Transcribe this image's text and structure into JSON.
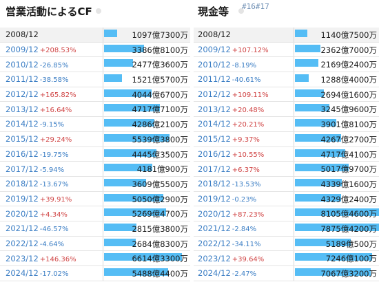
{
  "cf": {
    "title": "営業活動によるCF",
    "rows": [
      {
        "year": "2008/12",
        "change": "",
        "dir": "",
        "value": "1097億7300万",
        "ratio": 0.15
      },
      {
        "year": "2009/12",
        "change": "+208.53%",
        "dir": "up",
        "value": "3386億8100万",
        "ratio": 0.45
      },
      {
        "year": "2010/12",
        "change": "-26.85%",
        "dir": "down",
        "value": "2477億3600万",
        "ratio": 0.33
      },
      {
        "year": "2011/12",
        "change": "-38.58%",
        "dir": "down",
        "value": "1521億5700万",
        "ratio": 0.2
      },
      {
        "year": "2012/12",
        "change": "+165.82%",
        "dir": "up",
        "value": "4044億6700万",
        "ratio": 0.54
      },
      {
        "year": "2013/12",
        "change": "+16.64%",
        "dir": "up",
        "value": "4717億7100万",
        "ratio": 0.63
      },
      {
        "year": "2014/12",
        "change": "-9.15%",
        "dir": "down",
        "value": "4286億2100万",
        "ratio": 0.57
      },
      {
        "year": "2015/12",
        "change": "+29.24%",
        "dir": "up",
        "value": "5539億3800万",
        "ratio": 0.74
      },
      {
        "year": "2016/12",
        "change": "-19.75%",
        "dir": "down",
        "value": "4445億3500万",
        "ratio": 0.59
      },
      {
        "year": "2017/12",
        "change": "-5.94%",
        "dir": "down",
        "value": "4181億900万",
        "ratio": 0.55
      },
      {
        "year": "2018/12",
        "change": "-13.67%",
        "dir": "down",
        "value": "3609億5500万",
        "ratio": 0.48
      },
      {
        "year": "2019/12",
        "change": "+39.91%",
        "dir": "up",
        "value": "5050億2900万",
        "ratio": 0.67
      },
      {
        "year": "2020/12",
        "change": "+4.34%",
        "dir": "up",
        "value": "5269億4700万",
        "ratio": 0.7
      },
      {
        "year": "2021/12",
        "change": "-46.57%",
        "dir": "down",
        "value": "2815億3800万",
        "ratio": 0.37
      },
      {
        "year": "2022/12",
        "change": "-4.64%",
        "dir": "down",
        "value": "2684億8300万",
        "ratio": 0.36
      },
      {
        "year": "2023/12",
        "change": "+146.36%",
        "dir": "up",
        "value": "6614億3300万",
        "ratio": 0.88
      },
      {
        "year": "2024/12",
        "change": "-17.02%",
        "dir": "down",
        "value": "5488億4400万",
        "ratio": 0.73
      }
    ]
  },
  "cash": {
    "title": "現金等",
    "ref": "#16#17",
    "rows": [
      {
        "year": "2008/12",
        "change": "",
        "dir": "",
        "value": "1140億7500万",
        "ratio": 0.14
      },
      {
        "year": "2009/12",
        "change": "+107.12%",
        "dir": "up",
        "value": "2362億7000万",
        "ratio": 0.29
      },
      {
        "year": "2010/12",
        "change": "-8.19%",
        "dir": "down",
        "value": "2169億2400万",
        "ratio": 0.27
      },
      {
        "year": "2011/12",
        "change": "-40.61%",
        "dir": "down",
        "value": "1288億4000万",
        "ratio": 0.16
      },
      {
        "year": "2012/12",
        "change": "+109.11%",
        "dir": "up",
        "value": "2694億1600万",
        "ratio": 0.33
      },
      {
        "year": "2013/12",
        "change": "+20.48%",
        "dir": "up",
        "value": "3245億9600万",
        "ratio": 0.4
      },
      {
        "year": "2014/12",
        "change": "+20.21%",
        "dir": "up",
        "value": "3901億8100万",
        "ratio": 0.48
      },
      {
        "year": "2015/12",
        "change": "+9.37%",
        "dir": "up",
        "value": "4267億2700万",
        "ratio": 0.53
      },
      {
        "year": "2016/12",
        "change": "+10.55%",
        "dir": "up",
        "value": "4717億4100万",
        "ratio": 0.58
      },
      {
        "year": "2017/12",
        "change": "+6.37%",
        "dir": "up",
        "value": "5017億9700万",
        "ratio": 0.62
      },
      {
        "year": "2018/12",
        "change": "-13.53%",
        "dir": "down",
        "value": "4339億1600万",
        "ratio": 0.54
      },
      {
        "year": "2019/12",
        "change": "-0.23%",
        "dir": "down",
        "value": "4329億2400万",
        "ratio": 0.53
      },
      {
        "year": "2020/12",
        "change": "+87.23%",
        "dir": "up",
        "value": "8105億4600万",
        "ratio": 1.0
      },
      {
        "year": "2021/12",
        "change": "-2.84%",
        "dir": "down",
        "value": "7875億4200万",
        "ratio": 0.97
      },
      {
        "year": "2022/12",
        "change": "-34.11%",
        "dir": "down",
        "value": "5189億500万",
        "ratio": 0.64
      },
      {
        "year": "2023/12",
        "change": "+39.64%",
        "dir": "up",
        "value": "7246億100万",
        "ratio": 0.89
      },
      {
        "year": "2024/12",
        "change": "-2.47%",
        "dir": "down",
        "value": "7067億3200万",
        "ratio": 0.87
      }
    ]
  }
}
